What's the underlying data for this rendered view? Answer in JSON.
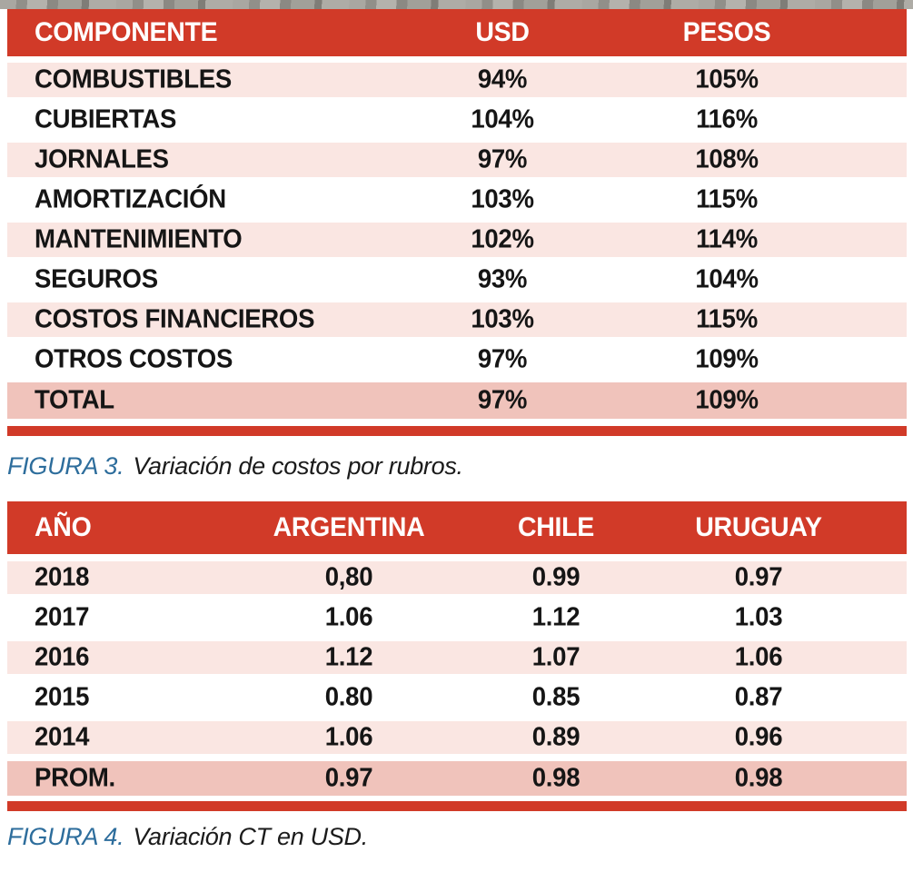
{
  "colors": {
    "accent_red": "#d13a28",
    "row_pink": "#fae6e2",
    "row_white": "#ffffff",
    "total_row_pink": "#f0c3bb",
    "header_text": "#ffffff",
    "body_text": "#151515",
    "caption_label_blue": "#2d6d9c"
  },
  "figures": [
    {
      "caption_label": "FIGURA 3.",
      "caption_text": "Variación de costos por rubros."
    },
    {
      "caption_label": "FIGURA 4.",
      "caption_text": "Variación CT en USD."
    }
  ],
  "chart_data": [
    {
      "type": "table",
      "title": "FIGURA 3. Variación de costos por rubros.",
      "columns": [
        "COMPONENTE",
        "USD",
        "PESOS"
      ],
      "rows": [
        [
          "COMBUSTIBLES",
          "94%",
          "105%"
        ],
        [
          "CUBIERTAS",
          "104%",
          "116%"
        ],
        [
          "JORNALES",
          "97%",
          "108%"
        ],
        [
          "AMORTIZACIÓN",
          "103%",
          "115%"
        ],
        [
          "MANTENIMIENTO",
          "102%",
          "114%"
        ],
        [
          "SEGUROS",
          "93%",
          "104%"
        ],
        [
          "COSTOS FINANCIEROS",
          "103%",
          "115%"
        ],
        [
          "OTROS COSTOS",
          "97%",
          "109%"
        ],
        [
          "TOTAL",
          "97%",
          "109%"
        ]
      ]
    },
    {
      "type": "table",
      "title": "FIGURA 4. Variación CT en USD.",
      "columns": [
        "AÑO",
        "ARGENTINA",
        "CHILE",
        "URUGUAY"
      ],
      "rows": [
        [
          "2018",
          "0,80",
          "0.99",
          "0.97"
        ],
        [
          "2017",
          "1.06",
          "1.12",
          "1.03"
        ],
        [
          "2016",
          "1.12",
          "1.07",
          "1.06"
        ],
        [
          "2015",
          "0.80",
          "0.85",
          "0.87"
        ],
        [
          "2014",
          "1.06",
          "0.89",
          "0.96"
        ],
        [
          "PROM.",
          "0.97",
          "0.98",
          "0.98"
        ]
      ]
    }
  ]
}
